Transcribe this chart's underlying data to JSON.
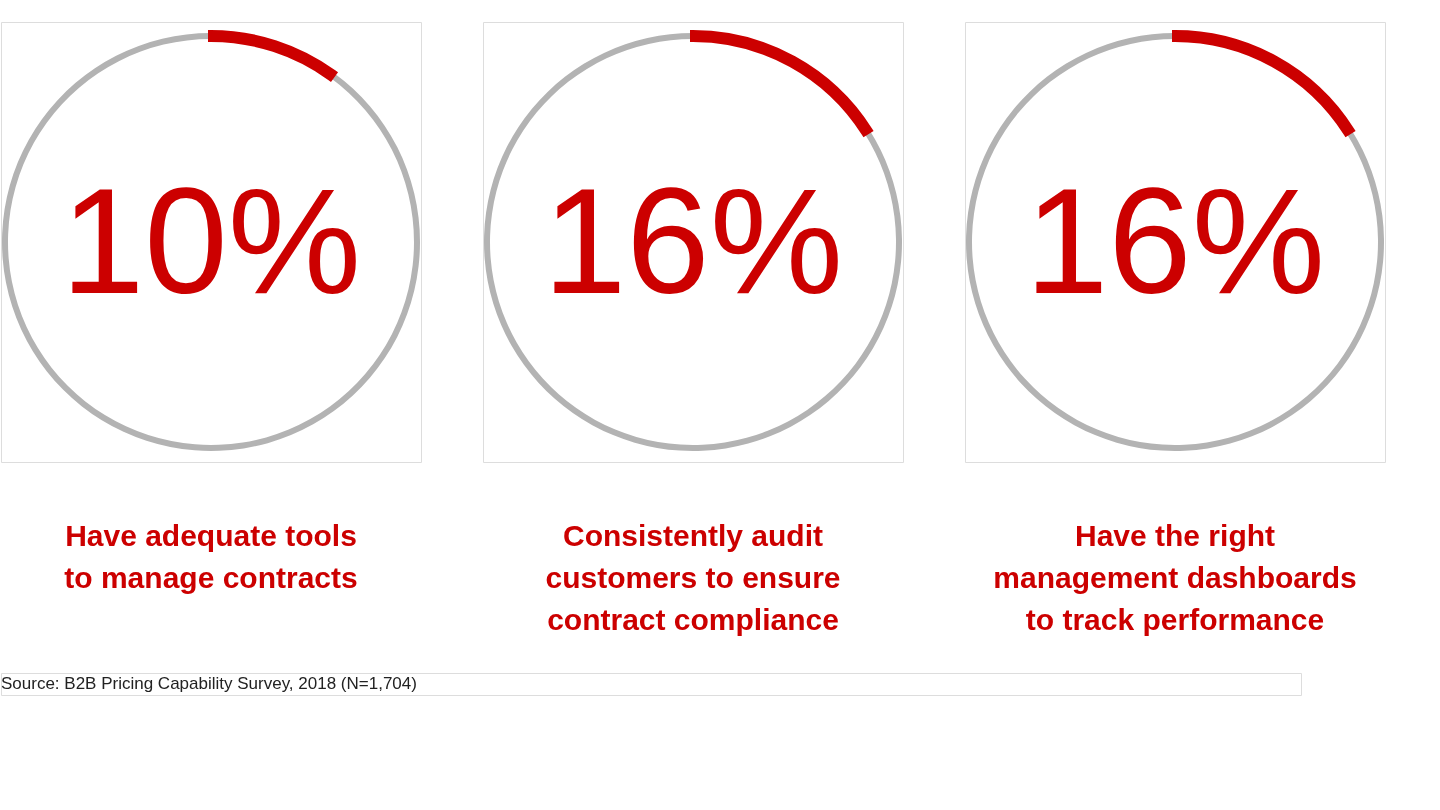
{
  "chart_data": [
    {
      "type": "donut",
      "title": "Have adequate tools\nto manage contracts",
      "categories": [
        null,
        null
      ],
      "values": [
        10,
        90
      ],
      "colors": [
        "#cc0000",
        "#b3b3b3"
      ],
      "value_labels": [
        "10%",
        null
      ],
      "annotations": [
        "Source: B2B Pricing Capability Survey, 2018 (N=1,704)"
      ]
    },
    {
      "type": "donut",
      "title": "Consistently audit\ncustomers to ensure\ncontract compliance",
      "categories": [
        null,
        null
      ],
      "values": [
        16,
        84
      ],
      "colors": [
        "#cc0000",
        "#b3b3b3"
      ],
      "value_labels": [
        "16%",
        null
      ]
    },
    {
      "type": "donut",
      "title": "Have the right\nmanagement dashboards\nto track performance",
      "categories": [
        null,
        null
      ],
      "values": [
        16,
        84
      ],
      "colors": [
        "#cc0000",
        "#b3b3b3"
      ],
      "value_labels": [
        "16%",
        null
      ]
    }
  ]
}
